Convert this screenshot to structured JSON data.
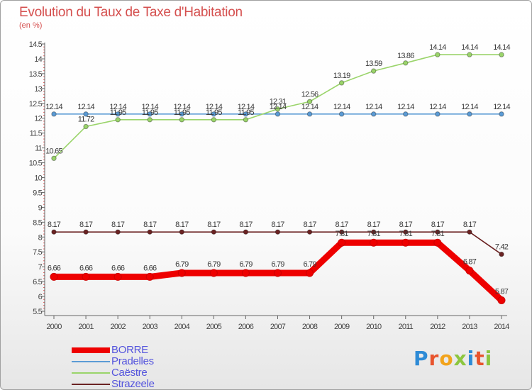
{
  "header": {
    "title": "Evolution du Taux de Taxe d'Habitation",
    "unit": "(en %)"
  },
  "logo": {
    "text": "Proxiti",
    "colors": [
      "#2e8bd6",
      "#e8542d",
      "#f2a31b",
      "#8cc63f",
      "#2e8bd6",
      "#e8542d",
      "#8cc63f"
    ]
  },
  "chart_data": {
    "type": "line",
    "x": [
      "2000",
      "2001",
      "2002",
      "2003",
      "2004",
      "2005",
      "2006",
      "2007",
      "2008",
      "2009",
      "2010",
      "2011",
      "2012",
      "2013",
      "2014"
    ],
    "ylim": [
      5.5,
      14.5
    ],
    "yticks": [
      "5.5",
      "6",
      "6.5",
      "7",
      "7.5",
      "8",
      "8.5",
      "9",
      "9.5",
      "10",
      "10.5",
      "11",
      "11.5",
      "12",
      "12.5",
      "13",
      "13.5",
      "14",
      "14.5"
    ],
    "grid": false,
    "legend_position": "bottom-left",
    "series": [
      {
        "name": "Strazeele",
        "color": "#6b2323",
        "thick": false,
        "values": [
          8.17,
          8.17,
          8.17,
          8.17,
          8.17,
          8.17,
          8.17,
          8.17,
          8.17,
          8.17,
          8.17,
          8.17,
          8.17,
          8.17,
          7.42
        ],
        "labels": [
          "8.17",
          "8.17",
          "8.17",
          "8.17",
          "8.17",
          "8.17",
          "8.17",
          "8.17",
          "8.17",
          "8.17",
          "8.17",
          "8.17",
          "8.17",
          "8.17",
          "7.42"
        ]
      },
      {
        "name": "Pradelles",
        "color": "#5b9bd5",
        "thick": false,
        "values": [
          12.14,
          12.14,
          12.14,
          12.14,
          12.14,
          12.14,
          12.14,
          12.14,
          12.14,
          12.14,
          12.14,
          12.14,
          12.14,
          12.14,
          12.14
        ],
        "labels": [
          "12.14",
          "12.14",
          "12.14",
          "12.14",
          "12.14",
          "12.14",
          "12.14",
          "12.14",
          "12.14",
          "12.14",
          "12.14",
          "12.14",
          "12.14",
          "12.14",
          "12.14"
        ]
      },
      {
        "name": "Caëstre",
        "color": "#9ad46a",
        "thick": false,
        "values": [
          10.65,
          11.72,
          11.95,
          11.95,
          11.95,
          11.95,
          11.95,
          12.31,
          12.56,
          13.19,
          13.59,
          13.86,
          14.14,
          14.14,
          14.14
        ],
        "labels": [
          "10.65",
          "11.72",
          "11.95",
          "11.95",
          "11.95",
          "11.95",
          "11.95",
          "12.31",
          "12.56",
          "13.19",
          "13.59",
          "13.86",
          "14.14",
          "14.14",
          "14.14"
        ]
      },
      {
        "name": "BORRE",
        "color": "#ee0000",
        "thick": true,
        "values": [
          6.66,
          6.66,
          6.66,
          6.66,
          6.79,
          6.79,
          6.79,
          6.79,
          6.79,
          7.81,
          7.81,
          7.81,
          7.81,
          6.87,
          5.87
        ],
        "labels": [
          "6.66",
          "6.66",
          "6.66",
          "6.66",
          "6.79",
          "6.79",
          "6.79",
          "6.79",
          "6.79",
          "7.81",
          "7.81",
          "7.81",
          "7.81",
          "6.87",
          "5.87"
        ]
      }
    ],
    "legend": [
      "BORRE",
      "Pradelles",
      "Caëstre",
      "Strazeele"
    ]
  }
}
